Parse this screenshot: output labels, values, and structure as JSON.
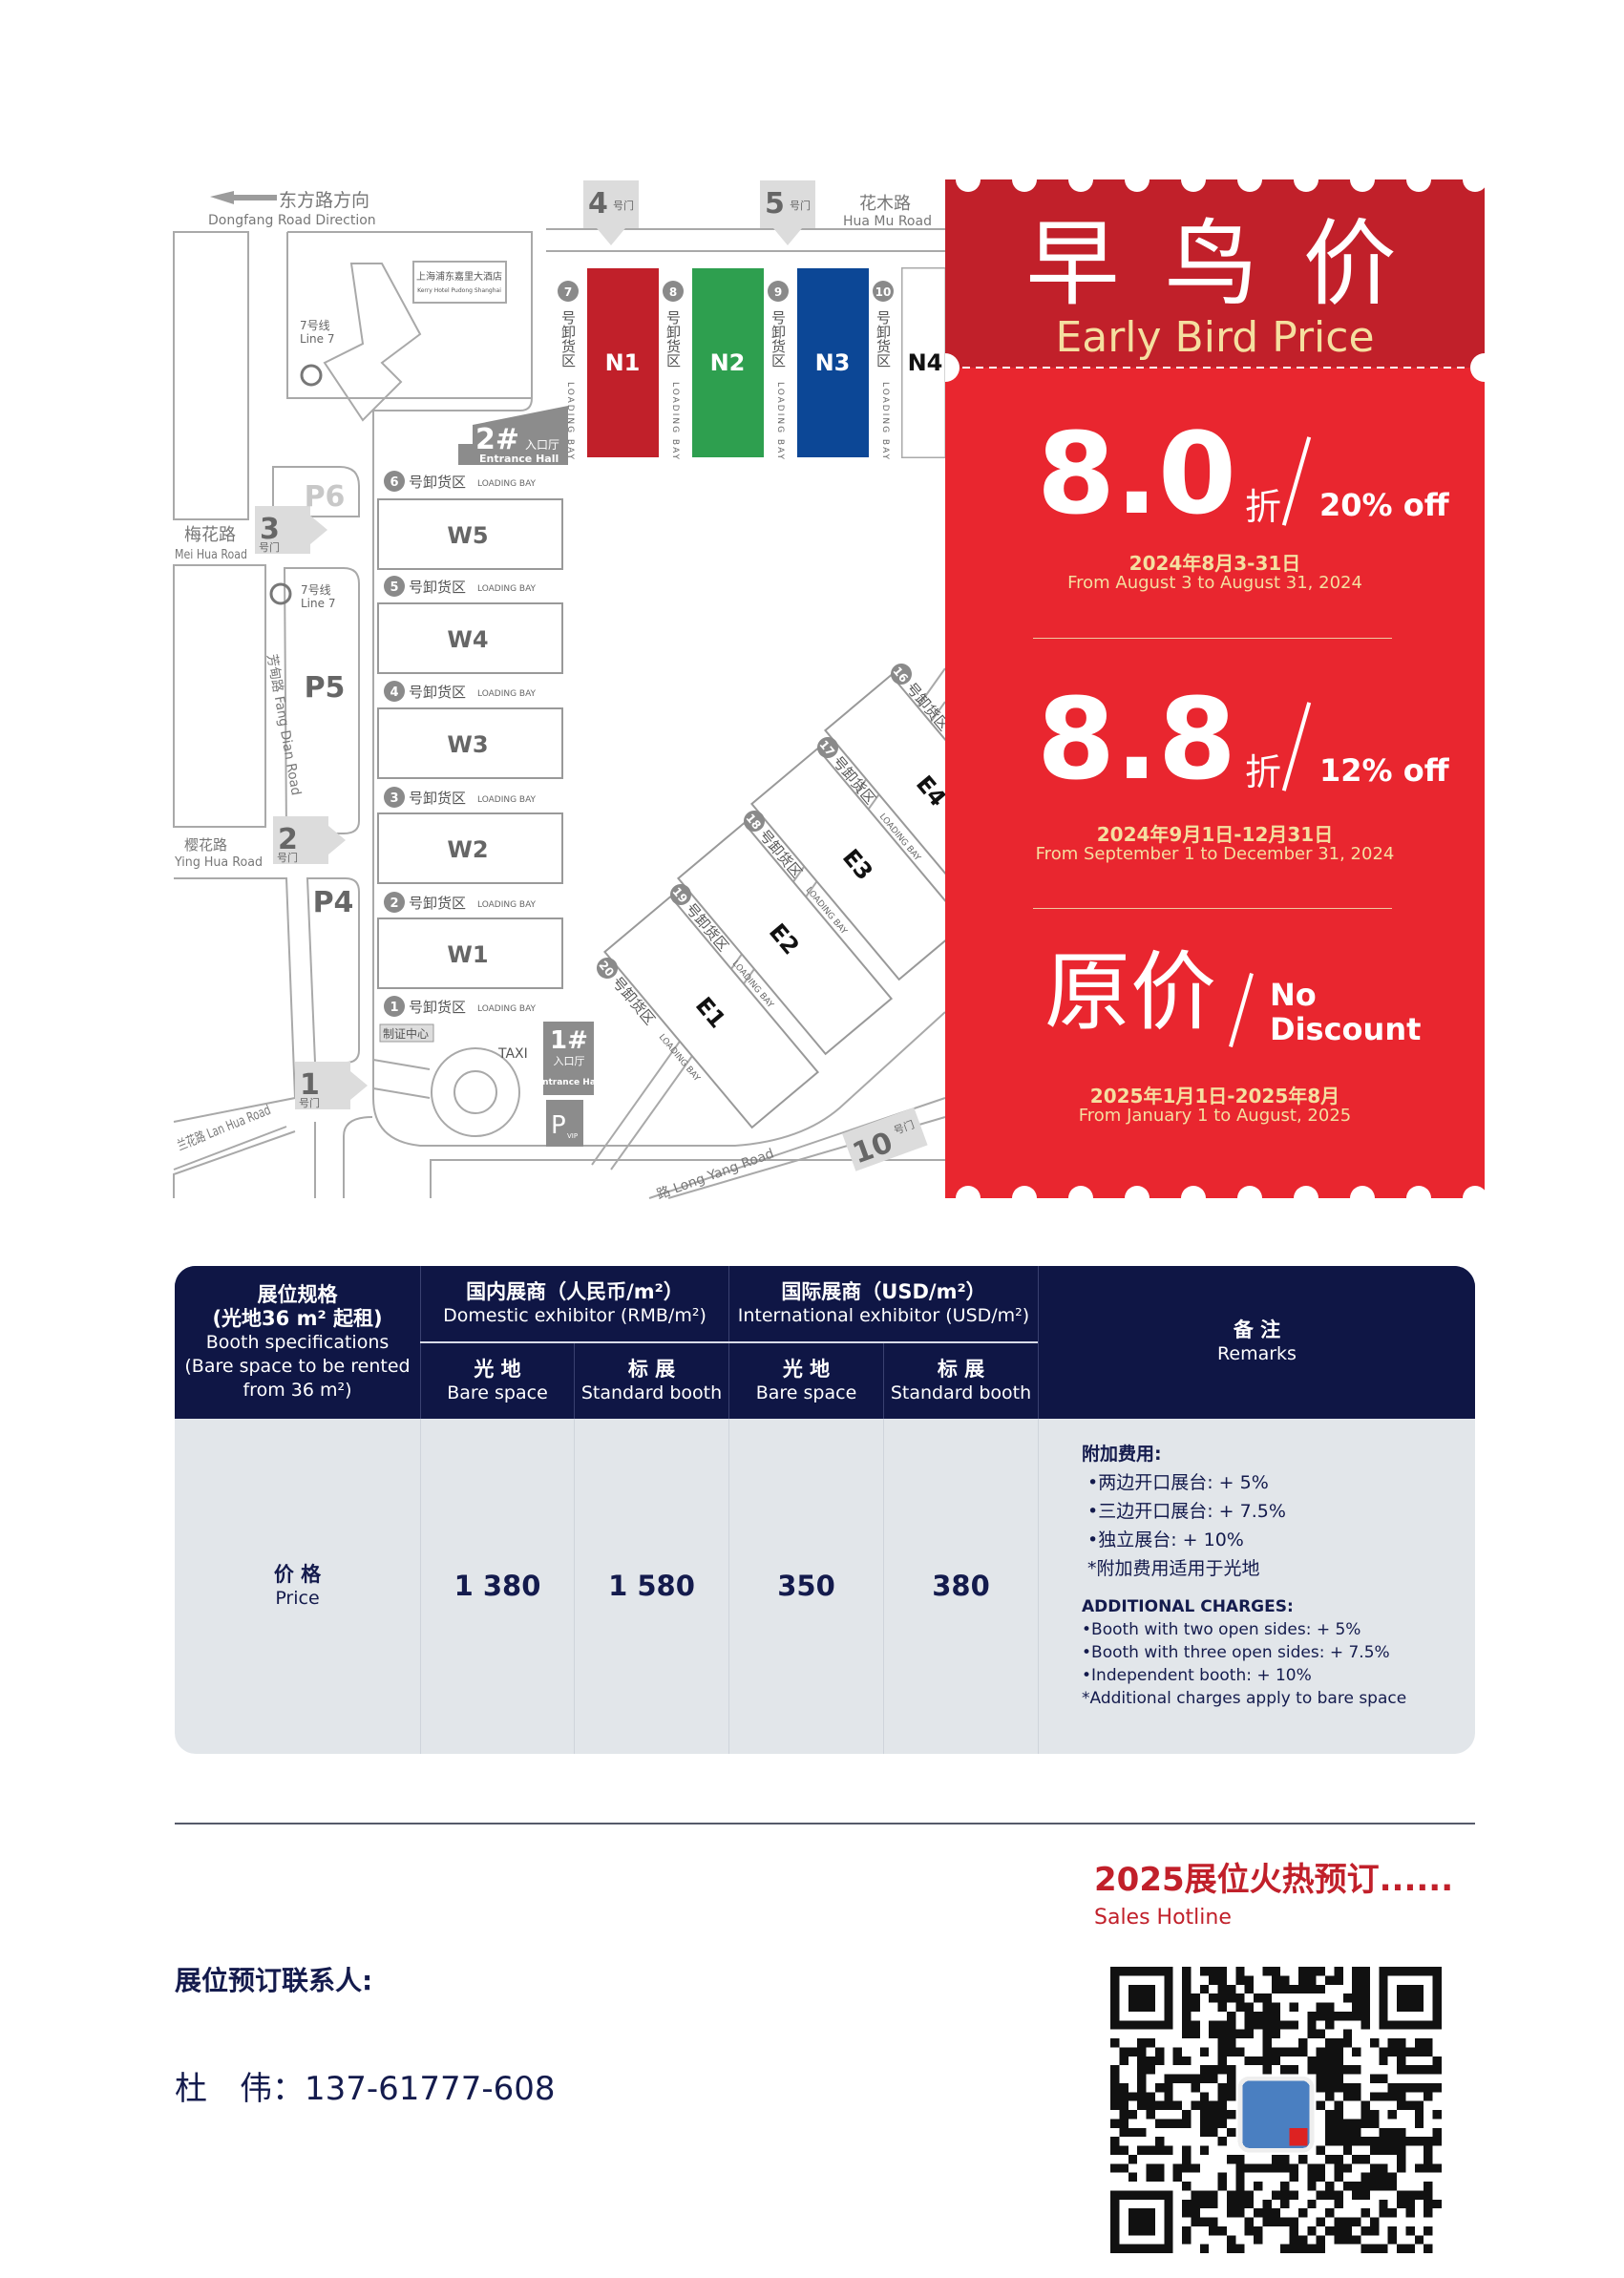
{
  "map": {
    "dongfang_cn": "东方路方向",
    "dongfang_en": "Dongfang Road Direction",
    "huamu_cn": "花木路",
    "huamu_en": "Hua Mu Road",
    "gate_suffix": "号门",
    "gates": [
      "4",
      "5",
      "3",
      "2",
      "1",
      "10"
    ],
    "hotel_cn": "上海浦东嘉里大酒店",
    "hotel_en": "Kerry Hotel Pudong Shanghai",
    "metro_cn": "7号线",
    "metro_en": "Line 7",
    "north_halls": [
      {
        "name": "N1",
        "color": "#c1202a"
      },
      {
        "name": "N2",
        "color": "#2e9f4f"
      },
      {
        "name": "N3",
        "color": "#0c4796"
      },
      {
        "name": "N4",
        "color": "#ffffff"
      }
    ],
    "north_bays": [
      "7",
      "8",
      "9",
      "10"
    ],
    "bay_cn_vertical": "号卸货区",
    "bay_cn": "号卸货区",
    "bay_en": "LOADING BAY",
    "entrance2_num": "2#",
    "entrance_cn": "入口厅",
    "entrance_en": "Entrance Hall",
    "entrance1_num": "1#",
    "parking": [
      "P6",
      "P5",
      "P4"
    ],
    "meihua_cn": "梅花路",
    "meihua_en": "Mei Hua Road",
    "fangdian": "芳甸路 Fang Dian Road",
    "yinghua_cn": "樱花路",
    "yinghua_en": "Ying Hua Road",
    "lanhua": "兰花路 Lan Hua Road",
    "longyang": "路 Long Yang Road",
    "west_halls": [
      "W5",
      "W4",
      "W3",
      "W2",
      "W1"
    ],
    "west_bays": [
      "6",
      "5",
      "4",
      "3",
      "2",
      "1"
    ],
    "badge_center": "制证中心",
    "taxi": "TAXI",
    "vip_p": "P",
    "vip_sub": "VIP",
    "east_halls": [
      "E1",
      "E2",
      "E3",
      "E4"
    ],
    "east_bays": [
      "20",
      "19",
      "18",
      "17",
      "16"
    ]
  },
  "promo": {
    "title_cn": "早 鸟 价",
    "title_en": "Early Bird Price",
    "colors": {
      "top": "#c1202a",
      "main": "#e9262f",
      "accent": "#f5dfa0"
    },
    "tiers": [
      {
        "big": "8.0",
        "unit": "折",
        "en": "20% off",
        "date_cn": "2024年8月3-31日",
        "date_en": "From August 3 to August 31, 2024"
      },
      {
        "big": "8.8",
        "unit": "折",
        "en": "12% off",
        "date_cn": "2024年9月1日-12月31日",
        "date_en": "From September 1 to December 31, 2024"
      },
      {
        "big": "原价",
        "en1": "No",
        "en2": "Discount",
        "date_cn": "2025年1月1日-2025年8月",
        "date_en": "From January 1 to August, 2025"
      }
    ]
  },
  "table": {
    "header_color": "#0f1645",
    "spec": {
      "cn1": "展位规格",
      "cn2": "(光地36 m² 起租)",
      "en1": "Booth specifications",
      "en2": "(Bare space to be rented",
      "en3": "from 36 m²)"
    },
    "domestic": {
      "cn": "国内展商（人民币/m²）",
      "en": "Domestic exhibitor (RMB/m²)"
    },
    "international": {
      "cn": "国际展商（USD/m²）",
      "en": "International exhibitor (USD/m²)"
    },
    "sub": [
      {
        "cn": "光 地",
        "en": "Bare space"
      },
      {
        "cn": "标 展",
        "en": "Standard booth"
      },
      {
        "cn": "光 地",
        "en": "Bare space"
      },
      {
        "cn": "标 展",
        "en": "Standard booth"
      }
    ],
    "remarks": {
      "cn": "备 注",
      "en": "Remarks"
    },
    "row": {
      "cn": "价 格",
      "en": "Price",
      "values": [
        "1 380",
        "1 580",
        "350",
        "380"
      ]
    },
    "notes_cn_title": "附加费用:",
    "notes_cn": [
      "•两边开口展台: + 5%",
      "•三边开口展台: + 7.5%",
      "•独立展台: + 10%",
      "*附加费用适用于光地"
    ],
    "notes_en_title": "ADDITIONAL CHARGES:",
    "notes_en": [
      "•Booth with two open sides: + 5%",
      "•Booth with three open sides: + 7.5%",
      "•Independent booth: + 10%",
      "*Additional charges apply to bare space"
    ]
  },
  "footer": {
    "hot_title": "2025展位火热预订......",
    "hotline": "Sales Hotline",
    "contact_label": "展位预订联系人:",
    "contact_name": "杜　伟：",
    "contact_phone": "137-61777-608"
  }
}
